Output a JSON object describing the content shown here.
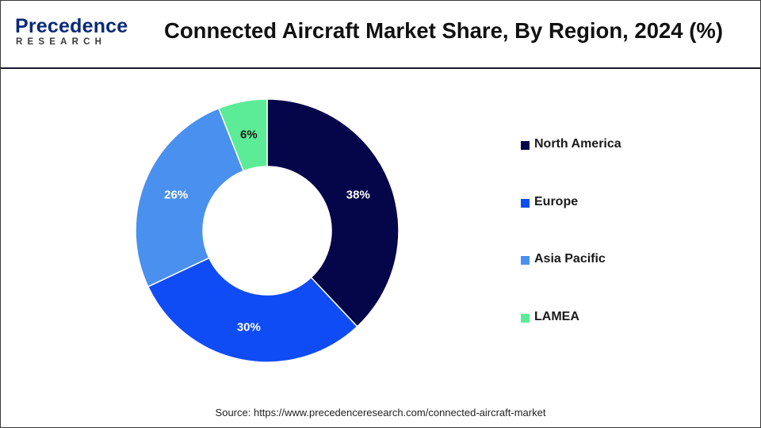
{
  "header": {
    "logo_word": "Precedence",
    "logo_sub": "RESEARCH",
    "title": "Connected Aircraft Market Share, By Region, 2024 (%)"
  },
  "chart_data": {
    "type": "pie",
    "style": "donut",
    "title": "Connected Aircraft Market Share, By Region, 2024 (%)",
    "categories": [
      "North America",
      "Europe",
      "Asia Pacific",
      "LAMEA"
    ],
    "values": [
      38,
      30,
      26,
      6
    ],
    "labels": [
      "38%",
      "30%",
      "26%",
      "6%"
    ],
    "colors": [
      "#05054a",
      "#0f4cf5",
      "#4a90ee",
      "#5ceb96"
    ],
    "label_colors": [
      "#ffffff",
      "#ffffff",
      "#ffffff",
      "#1a1a1a"
    ],
    "legend_position": "right"
  },
  "legend": {
    "items": [
      {
        "label": "North America",
        "color": "#05054a"
      },
      {
        "label": "Europe",
        "color": "#0f4cf5"
      },
      {
        "label": "Asia Pacific",
        "color": "#4a90ee"
      },
      {
        "label": "LAMEA",
        "color": "#5ceb96"
      }
    ]
  },
  "footer": {
    "source": "Source: https://www.precedenceresearch.com/connected-aircraft-market"
  }
}
